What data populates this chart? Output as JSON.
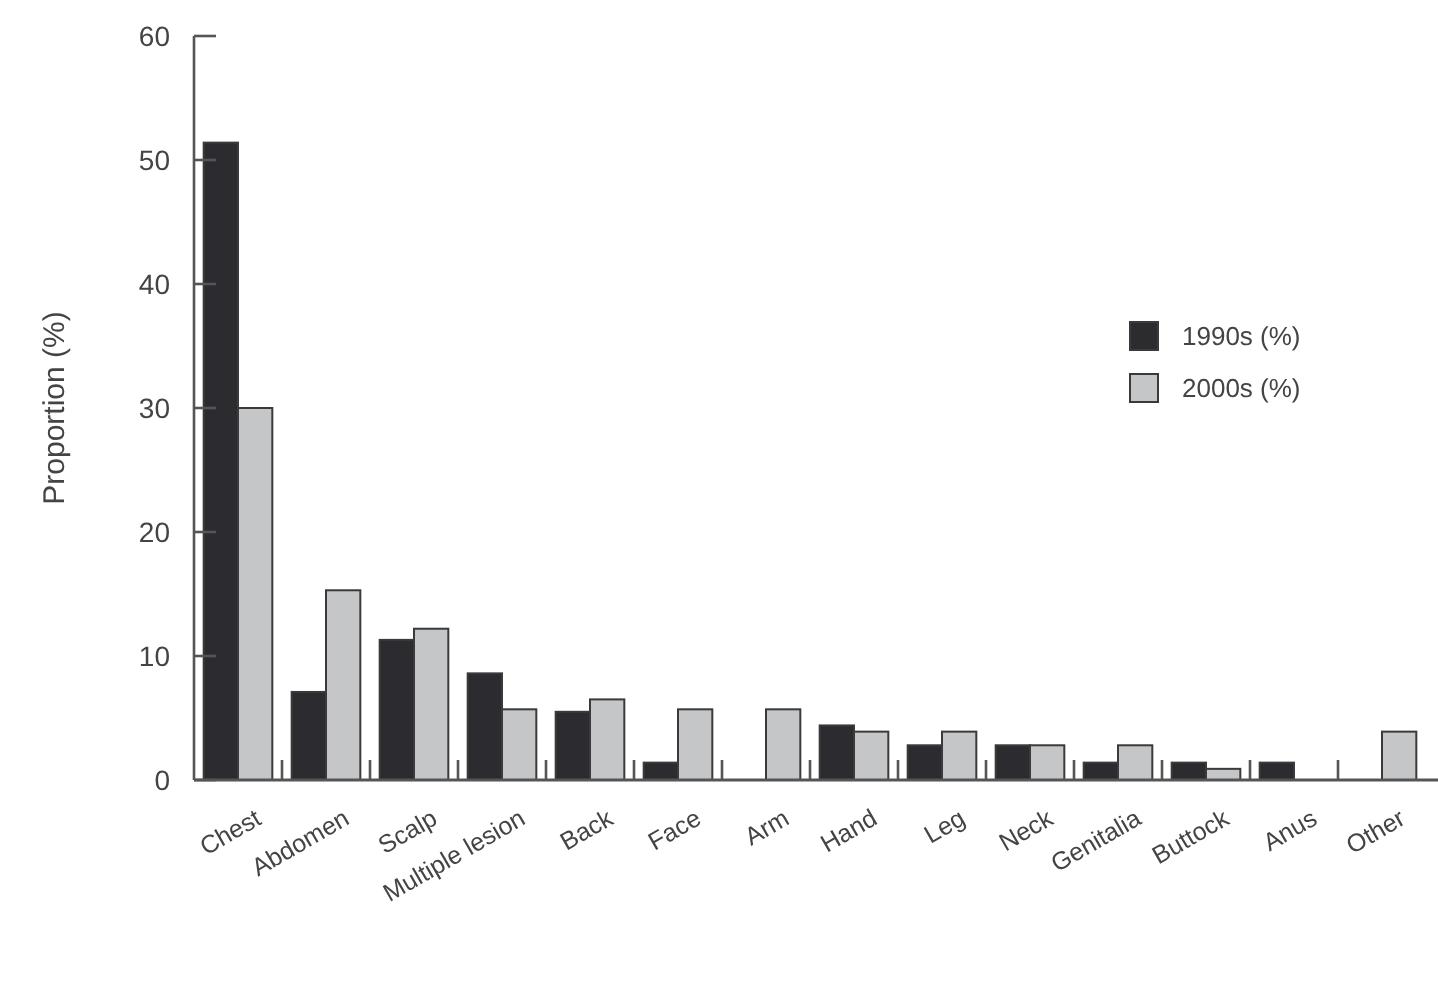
{
  "chart_data": {
    "type": "bar",
    "ylabel": "Proportion (%)",
    "categories": [
      "Chest",
      "Abdomen",
      "Scalp",
      "Multiple lesion",
      "Back",
      "Face",
      "Arm",
      "Hand",
      "Leg",
      "Neck",
      "Genitalia",
      "Buttock",
      "Anus",
      "Other"
    ],
    "series": [
      {
        "name": "1990s (%)",
        "color": "#2b2b30",
        "values": [
          51.4,
          7.1,
          11.3,
          8.6,
          5.5,
          1.4,
          0,
          4.4,
          2.8,
          2.8,
          1.4,
          1.4,
          1.4,
          0
        ]
      },
      {
        "name": "2000s (%)",
        "color": "#c4c6c8",
        "values": [
          30,
          15.3,
          12.2,
          5.7,
          6.5,
          5.7,
          5.7,
          3.9,
          3.9,
          2.8,
          2.8,
          0.9,
          0,
          3.9
        ]
      }
    ],
    "ylim": [
      0,
      60
    ],
    "yticks": [
      0,
      10,
      20,
      30,
      40,
      50,
      60
    ],
    "legend": "right",
    "grid": false
  }
}
